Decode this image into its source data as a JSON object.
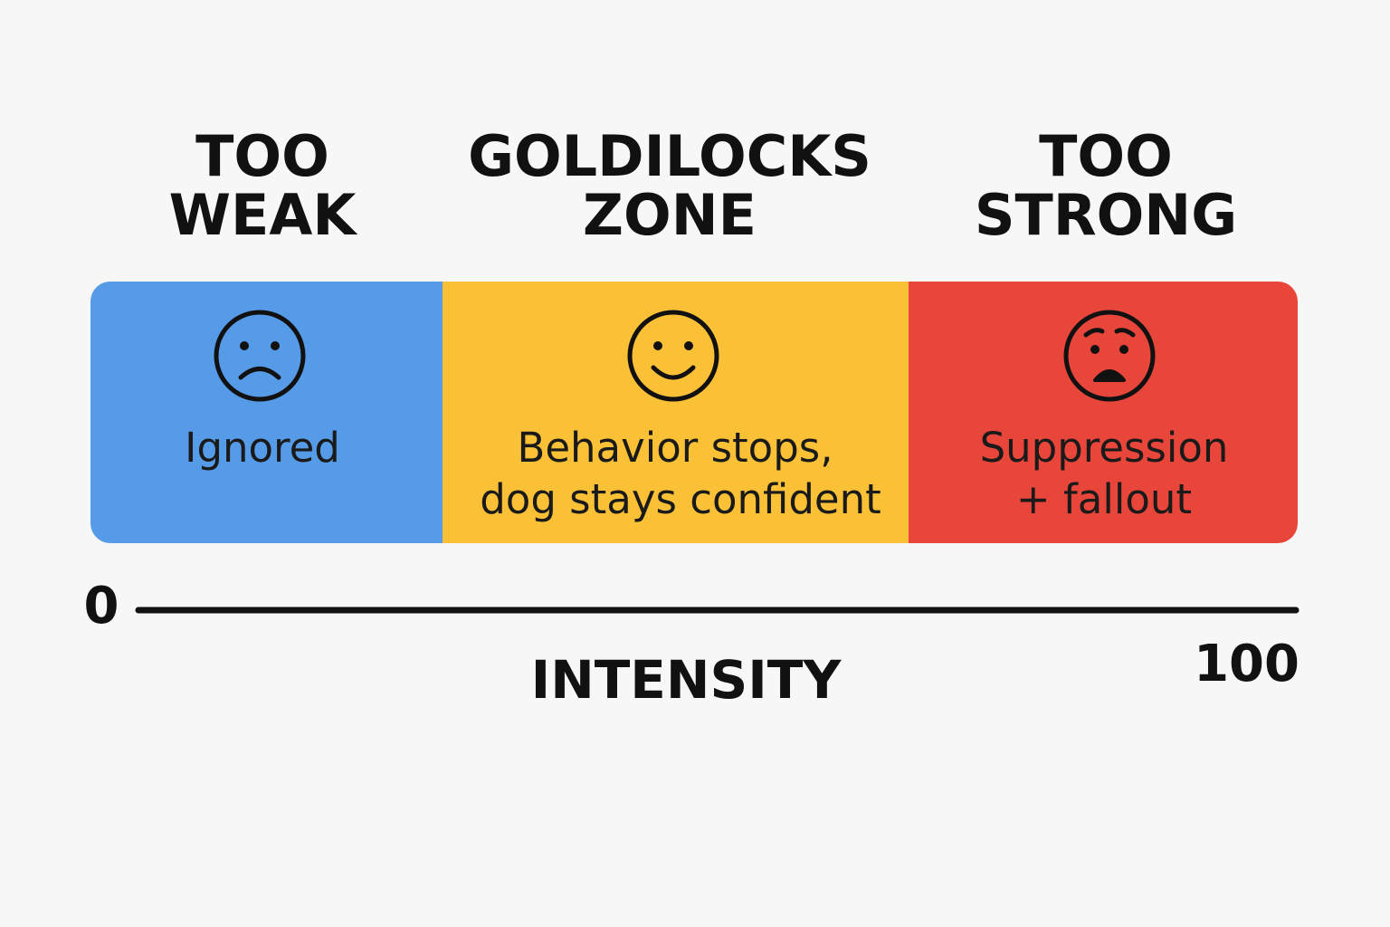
{
  "zones": [
    {
      "title": [
        "TOO",
        "WEAK"
      ],
      "description": [
        "Ignored"
      ]
    },
    {
      "title": [
        "GOLDILOCKS",
        "ZONE"
      ],
      "description": [
        "Behavior stops,",
        "dog stays confident"
      ]
    },
    {
      "title": [
        "TOO",
        "STRONG"
      ],
      "description": [
        "Suppression",
        "+ fallout"
      ]
    }
  ],
  "axis": {
    "min": 0,
    "max": 100,
    "label": "INTENSITY"
  }
}
